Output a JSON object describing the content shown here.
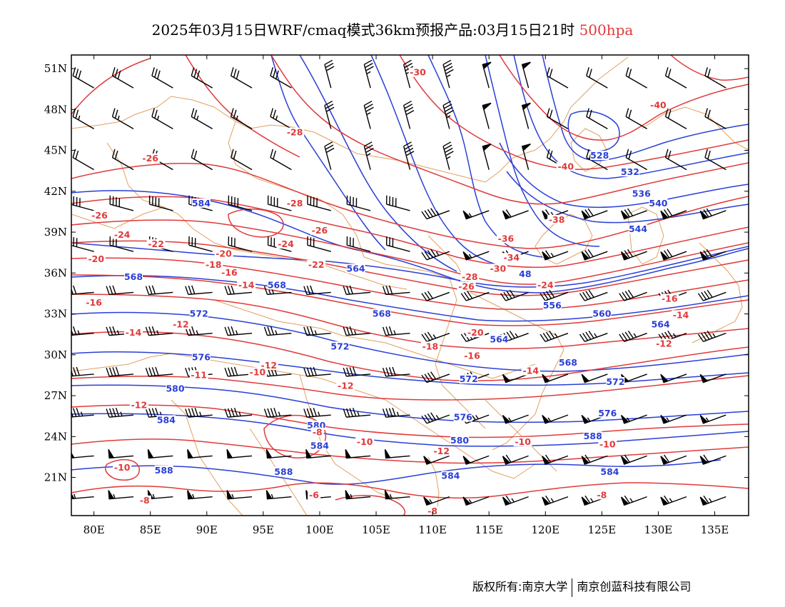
{
  "title": {
    "main": "2025年03月15日WRF/cmaq模式36km预报产品:03月15日21时",
    "level": "500hpa"
  },
  "colors": {
    "height": "#2a3fd6",
    "temperature": "#e03a3a",
    "border": "#e0a060",
    "wind": "#000000",
    "level_text": "#e03a3a"
  },
  "axes": {
    "lat_labels": [
      "51N",
      "48N",
      "45N",
      "42N",
      "39N",
      "36N",
      "33N",
      "30N",
      "27N",
      "24N",
      "21N"
    ],
    "lon_labels": [
      "80E",
      "85E",
      "90E",
      "95E",
      "100E",
      "105E",
      "110E",
      "115E",
      "120E",
      "125E",
      "130E",
      "135E"
    ]
  },
  "height_labels": [
    {
      "text": "584",
      "lon": 89.5,
      "lat": 41.0
    },
    {
      "text": "564",
      "lon": 103.2,
      "lat": 36.2
    },
    {
      "text": "568",
      "lon": 83.5,
      "lat": 35.6
    },
    {
      "text": "568",
      "lon": 96.2,
      "lat": 35.0
    },
    {
      "text": "568",
      "lon": 105.5,
      "lat": 32.9
    },
    {
      "text": "572",
      "lon": 89.3,
      "lat": 32.9
    },
    {
      "text": "572",
      "lon": 101.8,
      "lat": 30.5
    },
    {
      "text": "576",
      "lon": 89.5,
      "lat": 29.7
    },
    {
      "text": "580",
      "lon": 87.2,
      "lat": 27.4
    },
    {
      "text": "584",
      "lon": 86.4,
      "lat": 25.1
    },
    {
      "text": "580",
      "lon": 99.7,
      "lat": 24.7
    },
    {
      "text": "584",
      "lon": 100.0,
      "lat": 23.2
    },
    {
      "text": "588",
      "lon": 86.2,
      "lat": 21.4
    },
    {
      "text": "588",
      "lon": 96.8,
      "lat": 21.3
    },
    {
      "text": "572",
      "lon": 113.2,
      "lat": 28.1
    },
    {
      "text": "576",
      "lon": 112.7,
      "lat": 25.3
    },
    {
      "text": "580",
      "lon": 112.4,
      "lat": 23.6
    },
    {
      "text": "584",
      "lon": 111.6,
      "lat": 21.0
    },
    {
      "text": "564",
      "lon": 115.9,
      "lat": 31.0
    },
    {
      "text": "556",
      "lon": 120.6,
      "lat": 33.5
    },
    {
      "text": "560",
      "lon": 125.0,
      "lat": 32.9
    },
    {
      "text": "564",
      "lon": 130.2,
      "lat": 32.1
    },
    {
      "text": "568",
      "lon": 122.0,
      "lat": 29.3
    },
    {
      "text": "572",
      "lon": 126.2,
      "lat": 27.9
    },
    {
      "text": "576",
      "lon": 125.5,
      "lat": 25.6
    },
    {
      "text": "588",
      "lon": 124.2,
      "lat": 23.9
    },
    {
      "text": "584",
      "lon": 125.7,
      "lat": 21.3
    },
    {
      "text": "528",
      "lon": 124.8,
      "lat": 44.5
    },
    {
      "text": "532",
      "lon": 127.5,
      "lat": 43.3
    },
    {
      "text": "536",
      "lon": 128.5,
      "lat": 41.7
    },
    {
      "text": "540",
      "lon": 130.0,
      "lat": 41.0
    },
    {
      "text": "544",
      "lon": 128.2,
      "lat": 39.1
    },
    {
      "text": "48",
      "lon": 118.2,
      "lat": 35.8
    }
  ],
  "temperature_labels": [
    {
      "text": "-30",
      "lon": 108.7,
      "lat": 50.6
    },
    {
      "text": "-28",
      "lon": 97.8,
      "lat": 46.2
    },
    {
      "text": "-26",
      "lon": 85.0,
      "lat": 44.3
    },
    {
      "text": "-26",
      "lon": 80.5,
      "lat": 40.1
    },
    {
      "text": "-24",
      "lon": 82.5,
      "lat": 38.7
    },
    {
      "text": "-22",
      "lon": 85.5,
      "lat": 38.0
    },
    {
      "text": "-20",
      "lon": 80.2,
      "lat": 36.9
    },
    {
      "text": "-20",
      "lon": 91.5,
      "lat": 37.3
    },
    {
      "text": "-18",
      "lon": 90.6,
      "lat": 36.5
    },
    {
      "text": "-16",
      "lon": 92.0,
      "lat": 35.9
    },
    {
      "text": "-14",
      "lon": 93.5,
      "lat": 35.0
    },
    {
      "text": "-16",
      "lon": 80.0,
      "lat": 33.7
    },
    {
      "text": "-14",
      "lon": 83.5,
      "lat": 31.5
    },
    {
      "text": "-12",
      "lon": 87.7,
      "lat": 32.1
    },
    {
      "text": "-12",
      "lon": 95.5,
      "lat": 29.1
    },
    {
      "text": "-10",
      "lon": 94.5,
      "lat": 28.6
    },
    {
      "text": "-11",
      "lon": 89.3,
      "lat": 28.4
    },
    {
      "text": "-12",
      "lon": 84.0,
      "lat": 26.2
    },
    {
      "text": "-12",
      "lon": 102.3,
      "lat": 27.6
    },
    {
      "text": "-28",
      "lon": 97.8,
      "lat": 41.0
    },
    {
      "text": "-26",
      "lon": 100.0,
      "lat": 39.0
    },
    {
      "text": "-24",
      "lon": 97.0,
      "lat": 38.0
    },
    {
      "text": "-22",
      "lon": 99.7,
      "lat": 36.5
    },
    {
      "text": "-18",
      "lon": 109.8,
      "lat": 30.5
    },
    {
      "text": "-16",
      "lon": 113.5,
      "lat": 29.8
    },
    {
      "text": "-20",
      "lon": 113.8,
      "lat": 31.5
    },
    {
      "text": "-14",
      "lon": 118.7,
      "lat": 28.7
    },
    {
      "text": "-10",
      "lon": 104.0,
      "lat": 23.5
    },
    {
      "text": "-12",
      "lon": 110.8,
      "lat": 22.8
    },
    {
      "text": "-10",
      "lon": 118.0,
      "lat": 23.5
    },
    {
      "text": "-10",
      "lon": 125.5,
      "lat": 23.3
    },
    {
      "text": "-8",
      "lon": 99.8,
      "lat": 24.2
    },
    {
      "text": "-6",
      "lon": 99.5,
      "lat": 19.6
    },
    {
      "text": "-8",
      "lon": 84.5,
      "lat": 19.2
    },
    {
      "text": "-8",
      "lon": 110.0,
      "lat": 18.4
    },
    {
      "text": "-8",
      "lon": 125.0,
      "lat": 19.6
    },
    {
      "text": "-10",
      "lon": 82.5,
      "lat": 21.6
    },
    {
      "text": "-26",
      "lon": 113.0,
      "lat": 34.9
    },
    {
      "text": "-28",
      "lon": 113.3,
      "lat": 35.6
    },
    {
      "text": "-30",
      "lon": 115.8,
      "lat": 36.2
    },
    {
      "text": "-34",
      "lon": 117.0,
      "lat": 37.0
    },
    {
      "text": "-36",
      "lon": 116.5,
      "lat": 38.4
    },
    {
      "text": "-38",
      "lon": 121.0,
      "lat": 39.8
    },
    {
      "text": "-24",
      "lon": 120.0,
      "lat": 35.0
    },
    {
      "text": "-40",
      "lon": 121.8,
      "lat": 43.7
    },
    {
      "text": "-40",
      "lon": 130.0,
      "lat": 48.2
    },
    {
      "text": "-16",
      "lon": 131.0,
      "lat": 34.0
    },
    {
      "text": "-14",
      "lon": 132.0,
      "lat": 32.8
    },
    {
      "text": "-12",
      "lon": 130.5,
      "lat": 30.7
    }
  ],
  "footer": {
    "left": "版权所有:南京大学",
    "right": "南京创蓝科技有限公司"
  }
}
